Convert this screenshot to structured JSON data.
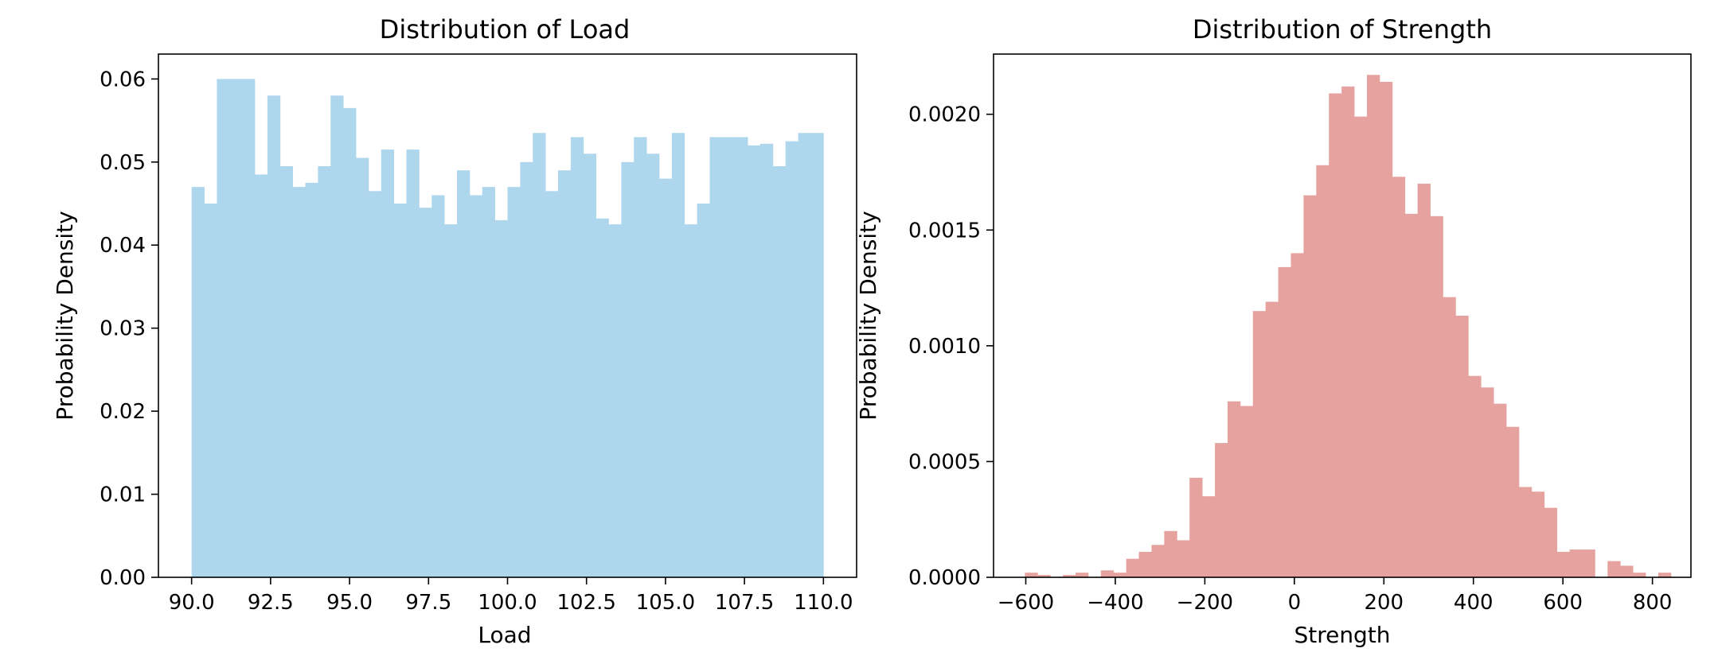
{
  "chart_data": [
    {
      "type": "histogram",
      "title": "Distribution of Load",
      "xlabel": "Load",
      "ylabel": "Probability Density",
      "xlim": [
        88.95,
        111.05
      ],
      "ylim": [
        0,
        0.063
      ],
      "xticks": [
        90.0,
        92.5,
        95.0,
        97.5,
        100.0,
        102.5,
        105.0,
        107.5,
        110.0
      ],
      "xtick_labels": [
        "90.0",
        "92.5",
        "95.0",
        "97.5",
        "100.0",
        "102.5",
        "105.0",
        "107.5",
        "110.0"
      ],
      "yticks": [
        0.0,
        0.01,
        0.02,
        0.03,
        0.04,
        0.05,
        0.06
      ],
      "ytick_labels": [
        "0.00",
        "0.01",
        "0.02",
        "0.03",
        "0.04",
        "0.05",
        "0.06"
      ],
      "bin_start": 90.0,
      "bin_width": 0.4,
      "values": [
        0.047,
        0.045,
        0.06,
        0.06,
        0.06,
        0.0485,
        0.058,
        0.0495,
        0.047,
        0.0475,
        0.0495,
        0.058,
        0.0565,
        0.0505,
        0.0465,
        0.0515,
        0.045,
        0.0515,
        0.0445,
        0.046,
        0.0425,
        0.049,
        0.046,
        0.047,
        0.043,
        0.047,
        0.05,
        0.0535,
        0.0465,
        0.049,
        0.053,
        0.051,
        0.0432,
        0.0425,
        0.05,
        0.053,
        0.051,
        0.048,
        0.0535,
        0.0425,
        0.045,
        0.053,
        0.053,
        0.053,
        0.052,
        0.0522,
        0.0495,
        0.0525,
        0.0535,
        0.0535
      ],
      "color": "#aed7ee",
      "grid": false,
      "legend": false
    },
    {
      "type": "histogram",
      "title": "Distribution of Strength",
      "xlabel": "Strength",
      "ylabel": "Probability Density",
      "xlim": [
        -672,
        886
      ],
      "ylim": [
        0,
        0.00226
      ],
      "xticks": [
        -600,
        -400,
        -200,
        0,
        200,
        400,
        600,
        800
      ],
      "xtick_labels": [
        "−600",
        "−400",
        "−200",
        "0",
        "200",
        "400",
        "600",
        "800"
      ],
      "yticks": [
        0.0,
        0.0005,
        0.001,
        0.0015,
        0.002
      ],
      "ytick_labels": [
        "0.0000",
        "0.0005",
        "0.0010",
        "0.0015",
        "0.0020"
      ],
      "bin_start": -602,
      "bin_width": 28.3,
      "values": [
        2e-05,
        1e-05,
        0.0,
        1e-05,
        2e-05,
        0.0,
        3e-05,
        2e-05,
        8e-05,
        0.00011,
        0.00014,
        0.0002,
        0.00016,
        0.00043,
        0.00035,
        0.00058,
        0.00076,
        0.00074,
        0.00115,
        0.00119,
        0.00134,
        0.0014,
        0.00165,
        0.00178,
        0.00209,
        0.00212,
        0.00199,
        0.00217,
        0.00214,
        0.00173,
        0.00157,
        0.0017,
        0.00156,
        0.00121,
        0.00113,
        0.00087,
        0.00082,
        0.00075,
        0.00065,
        0.00039,
        0.00037,
        0.0003,
        0.00011,
        0.00012,
        0.00012,
        0.0,
        7e-05,
        5e-05,
        2e-05,
        0.0,
        2e-05
      ],
      "color": "#e5a29f",
      "grid": false,
      "legend": false
    }
  ]
}
